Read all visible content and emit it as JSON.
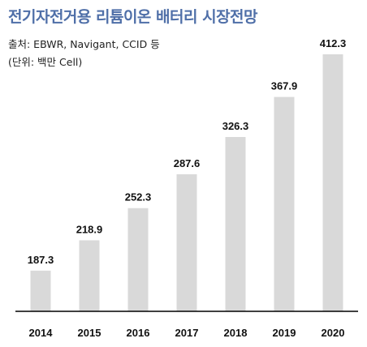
{
  "chart_data": {
    "type": "bar",
    "title": "전기자전거용 리튬이온 배터리 시장전망",
    "source": "출처: EBWR, Navigant, CCID 등",
    "unit": "(단위: 백만 Cell)",
    "categories": [
      "2014",
      "2015",
      "2016",
      "2017",
      "2018",
      "2019",
      "2020"
    ],
    "values": [
      187.3,
      218.9,
      252.3,
      287.6,
      326.3,
      367.9,
      412.3
    ],
    "value_labels": [
      "187.3",
      "218.9",
      "252.3",
      "287.6",
      "326.3",
      "367.9",
      "412.3"
    ],
    "xlabel": "",
    "ylabel": "",
    "ylim": [
      145,
      430
    ],
    "grid": false,
    "legend": "none",
    "bar_color": "#d9d9d9",
    "axis_color": "#000000"
  }
}
